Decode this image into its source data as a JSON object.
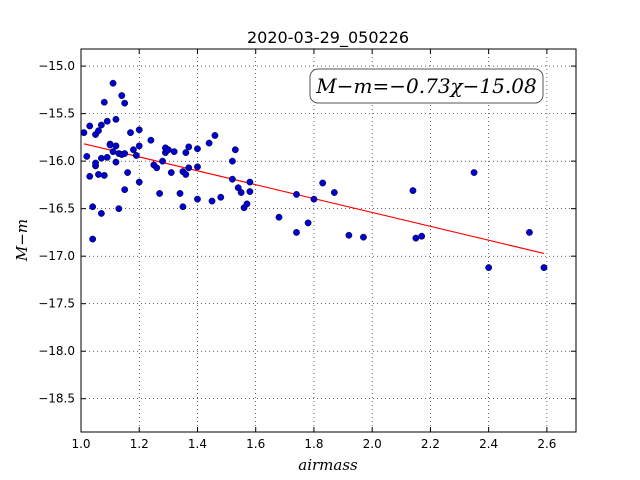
{
  "chart_data": {
    "type": "scatter",
    "title": "2020-03-29_050226",
    "xlabel": "airmass",
    "ylabel": "M−m",
    "xlim": [
      1.0,
      2.7
    ],
    "ylim": [
      -18.85,
      -14.82
    ],
    "y_inverted": false,
    "grid": true,
    "xticks": [
      1.0,
      1.2,
      1.4,
      1.6,
      1.8,
      2.0,
      2.2,
      2.4,
      2.6
    ],
    "yticks": [
      -15.0,
      -15.5,
      -16.0,
      -16.5,
      -17.0,
      -17.5,
      -18.0,
      -18.5
    ],
    "annotation": "M−m=−0.73χ−15.08",
    "fit": {
      "slope": -0.73,
      "intercept": -15.08,
      "x_range": [
        1.01,
        2.59
      ],
      "color": "#ff0000"
    },
    "point_color": "#0000cc",
    "series": [
      {
        "points": [
          [
            1.01,
            -15.7
          ],
          [
            1.02,
            -15.95
          ],
          [
            1.03,
            -16.16
          ],
          [
            1.03,
            -15.63
          ],
          [
            1.04,
            -16.48
          ],
          [
            1.04,
            -16.82
          ],
          [
            1.05,
            -15.72
          ],
          [
            1.05,
            -16.05
          ],
          [
            1.05,
            -16.02
          ],
          [
            1.06,
            -15.68
          ],
          [
            1.06,
            -16.14
          ],
          [
            1.07,
            -15.62
          ],
          [
            1.07,
            -16.55
          ],
          [
            1.07,
            -15.97
          ],
          [
            1.08,
            -15.38
          ],
          [
            1.08,
            -16.15
          ],
          [
            1.09,
            -15.58
          ],
          [
            1.09,
            -15.96
          ],
          [
            1.1,
            -15.82
          ],
          [
            1.1,
            -15.83
          ],
          [
            1.11,
            -15.18
          ],
          [
            1.11,
            -15.9
          ],
          [
            1.12,
            -15.56
          ],
          [
            1.12,
            -15.84
          ],
          [
            1.12,
            -16.01
          ],
          [
            1.13,
            -15.92
          ],
          [
            1.13,
            -16.5
          ],
          [
            1.14,
            -15.31
          ],
          [
            1.14,
            -15.93
          ],
          [
            1.15,
            -15.39
          ],
          [
            1.15,
            -15.92
          ],
          [
            1.15,
            -16.3
          ],
          [
            1.16,
            -16.12
          ],
          [
            1.17,
            -15.7
          ],
          [
            1.18,
            -15.88
          ],
          [
            1.19,
            -15.94
          ],
          [
            1.2,
            -15.84
          ],
          [
            1.2,
            -16.22
          ],
          [
            1.2,
            -15.67
          ],
          [
            1.24,
            -15.78
          ],
          [
            1.25,
            -16.04
          ],
          [
            1.26,
            -16.07
          ],
          [
            1.27,
            -16.34
          ],
          [
            1.28,
            -16.0
          ],
          [
            1.29,
            -15.91
          ],
          [
            1.29,
            -15.86
          ],
          [
            1.3,
            -15.88
          ],
          [
            1.31,
            -16.12
          ],
          [
            1.32,
            -15.9
          ],
          [
            1.34,
            -16.34
          ],
          [
            1.35,
            -16.48
          ],
          [
            1.35,
            -16.11
          ],
          [
            1.36,
            -15.91
          ],
          [
            1.36,
            -16.14
          ],
          [
            1.37,
            -16.07
          ],
          [
            1.37,
            -15.85
          ],
          [
            1.4,
            -16.4
          ],
          [
            1.4,
            -15.87
          ],
          [
            1.4,
            -16.06
          ],
          [
            1.44,
            -15.81
          ],
          [
            1.45,
            -16.42
          ],
          [
            1.46,
            -15.73
          ],
          [
            1.48,
            -16.38
          ],
          [
            1.52,
            -16.19
          ],
          [
            1.52,
            -16.0
          ],
          [
            1.53,
            -15.88
          ],
          [
            1.54,
            -16.28
          ],
          [
            1.55,
            -16.33
          ],
          [
            1.56,
            -16.49
          ],
          [
            1.57,
            -16.45
          ],
          [
            1.58,
            -16.22
          ],
          [
            1.58,
            -16.32
          ],
          [
            1.68,
            -16.59
          ],
          [
            1.74,
            -16.75
          ],
          [
            1.74,
            -16.35
          ],
          [
            1.78,
            -16.65
          ],
          [
            1.8,
            -16.4
          ],
          [
            1.83,
            -16.23
          ],
          [
            1.87,
            -16.33
          ],
          [
            1.92,
            -16.78
          ],
          [
            1.97,
            -16.8
          ],
          [
            2.14,
            -16.31
          ],
          [
            2.15,
            -16.81
          ],
          [
            2.17,
            -16.79
          ],
          [
            2.35,
            -16.12
          ],
          [
            2.4,
            -17.12
          ],
          [
            2.54,
            -16.75
          ],
          [
            2.59,
            -17.12
          ]
        ]
      }
    ]
  }
}
